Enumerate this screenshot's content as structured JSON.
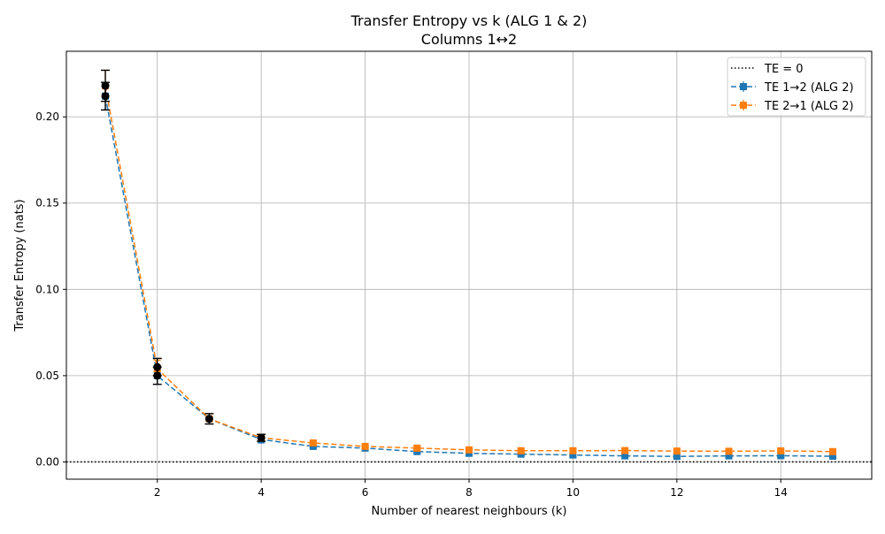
{
  "chart_data": {
    "type": "line",
    "title": "Transfer Entropy vs k (ALG 1 & 2)",
    "subtitle": "Columns 1↔2",
    "xlabel": "Number of nearest neighbours (k)",
    "ylabel": "Transfer Entropy (nats)",
    "xlim": [
      0.25,
      15.75
    ],
    "ylim": [
      -0.01,
      0.238
    ],
    "xticks": [
      2,
      4,
      6,
      8,
      10,
      12,
      14
    ],
    "yticks": [
      0.0,
      0.05,
      0.1,
      0.15,
      0.2
    ],
    "ytick_labels": [
      "0.00",
      "0.05",
      "0.10",
      "0.15",
      "0.20"
    ],
    "grid": true,
    "legend_position": "top-right",
    "x": [
      1,
      2,
      3,
      4,
      5,
      6,
      7,
      8,
      9,
      10,
      11,
      12,
      13,
      14,
      15
    ],
    "series": [
      {
        "name": "TE 1→2 (ALG 2)",
        "color": "#1f77b4",
        "marker": "square",
        "style": "dashed",
        "values": [
          0.212,
          0.05,
          0.025,
          0.013,
          0.009,
          0.008,
          0.006,
          0.005,
          0.0045,
          0.004,
          0.0035,
          0.0032,
          0.0035,
          0.0036,
          0.0033
        ],
        "err": [
          0.008,
          0.005,
          0.003,
          0.002,
          0.001,
          0.001,
          0.001,
          0.001,
          0.001,
          0.001,
          0.001,
          0.001,
          0.001,
          0.001,
          0.001
        ]
      },
      {
        "name": "TE 2→1 (ALG 2)",
        "color": "#ff7f0e",
        "marker": "square",
        "style": "dashed",
        "values": [
          0.218,
          0.054,
          0.025,
          0.014,
          0.011,
          0.009,
          0.008,
          0.007,
          0.0065,
          0.0065,
          0.0066,
          0.0063,
          0.0062,
          0.0064,
          0.006
        ],
        "err": [
          0.009,
          0.005,
          0.003,
          0.002,
          0.001,
          0.001,
          0.001,
          0.001,
          0.001,
          0.001,
          0.001,
          0.001,
          0.001,
          0.001,
          0.001
        ]
      }
    ],
    "alg1_points": {
      "color": "#000000",
      "marker": "circle",
      "x": [
        1,
        1,
        2,
        2,
        3,
        4
      ],
      "values": [
        0.212,
        0.218,
        0.05,
        0.055,
        0.025,
        0.014
      ],
      "err": [
        0.008,
        0.009,
        0.005,
        0.005,
        0.003,
        0.002
      ]
    },
    "reference_line": {
      "label": "TE = 0",
      "value": 0,
      "style": "dotted",
      "color": "#000000"
    }
  }
}
